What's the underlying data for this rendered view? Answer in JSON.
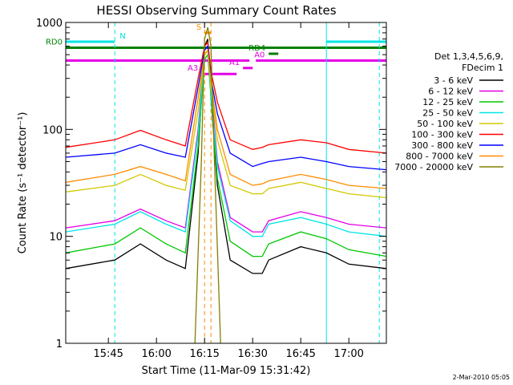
{
  "chart_data": {
    "type": "line",
    "title": "HESSI Observing Summary Count Rates",
    "xlabel": "Start Time (11-Mar-09 15:31:42)",
    "ylabel": "Count Rate (s⁻¹ detector⁻¹)",
    "y_scale": "log",
    "ylim": [
      1,
      1000
    ],
    "xlim": [
      "15:31:42",
      "17:11:42"
    ],
    "x_ticks": [
      "15:45",
      "16:00",
      "16:15",
      "16:30",
      "16:45",
      "17:00"
    ],
    "y_ticks": [
      "1",
      "10",
      "100",
      "1000"
    ],
    "grid": false,
    "legend_position": "right",
    "legend_header": [
      "Det 1,3,4,5,6,9,",
      "FDecim 1"
    ],
    "footer_date": "2-Mar-2010 05:05",
    "flags": [
      {
        "label": "N",
        "color": "#00e5e5",
        "y": 660,
        "segments": [
          [
            "15:31:42",
            "15:47:00"
          ],
          [
            "16:53:00",
            "17:11:42"
          ]
        ]
      },
      {
        "label": "S",
        "color": "#ff8c00",
        "y": 800,
        "segments": [
          [
            "16:15:00",
            "16:17:00"
          ]
        ]
      },
      {
        "label": "RD0",
        "color": "#008000",
        "y": 580,
        "segments": [
          [
            "15:31:42",
            "17:11:42"
          ]
        ]
      },
      {
        "label": "RD4",
        "color": "#008000",
        "y": 510,
        "segments": [
          [
            "16:35:00",
            "16:38:00"
          ]
        ]
      },
      {
        "label": "A0",
        "color": "#e600e6",
        "y": 440,
        "segments": [
          [
            "15:31:42",
            "16:29:00"
          ],
          [
            "16:31:00",
            "17:11:42"
          ]
        ]
      },
      {
        "label": "A1",
        "color": "#e600e6",
        "y": 375,
        "segments": [
          [
            "16:27:00",
            "16:30:00"
          ]
        ]
      },
      {
        "label": "A3",
        "color": "#e600e6",
        "y": 330,
        "segments": [
          [
            "16:14:00",
            "16:25:00"
          ]
        ]
      }
    ],
    "markers": [
      {
        "type": "dashed",
        "color": "#00e5e5",
        "x": "15:47:00"
      },
      {
        "type": "solid",
        "color": "#00e5e5",
        "x": "16:53:00"
      },
      {
        "type": "dashed",
        "color": "#00e5e5",
        "x": "17:09:30"
      },
      {
        "type": "dashed",
        "color": "#ff8c00",
        "x": "16:15:00"
      },
      {
        "type": "dashed",
        "color": "#ff8c00",
        "x": "16:17:00"
      }
    ],
    "series": [
      {
        "name": "3 - 6 keV",
        "color": "#000000",
        "points": [
          [
            "15:31:42",
            5
          ],
          [
            "15:47:00",
            6
          ],
          [
            "15:55:00",
            8.5
          ],
          [
            "16:03:00",
            6
          ],
          [
            "16:09:00",
            5
          ],
          [
            "16:13:00",
            60
          ],
          [
            "16:15:00",
            600
          ],
          [
            "16:16:00",
            700
          ],
          [
            "16:17:00",
            200
          ],
          [
            "16:19:00",
            30
          ],
          [
            "16:23:00",
            6
          ],
          [
            "16:30:00",
            4.5
          ],
          [
            "16:33:00",
            4.5
          ],
          [
            "16:35:00",
            6
          ],
          [
            "16:45:00",
            8
          ],
          [
            "16:53:00",
            7
          ],
          [
            "17:00:00",
            5.5
          ],
          [
            "17:11:42",
            5
          ]
        ]
      },
      {
        "name": "6 - 12 keV",
        "color": "#e600e6",
        "points": [
          [
            "15:31:42",
            12
          ],
          [
            "15:47:00",
            14
          ],
          [
            "15:55:00",
            18
          ],
          [
            "16:03:00",
            14
          ],
          [
            "16:09:00",
            12
          ],
          [
            "16:13:00",
            100
          ],
          [
            "16:15:00",
            550
          ],
          [
            "16:16:00",
            600
          ],
          [
            "16:17:00",
            250
          ],
          [
            "16:19:00",
            50
          ],
          [
            "16:23:00",
            15
          ],
          [
            "16:30:00",
            11
          ],
          [
            "16:33:00",
            11
          ],
          [
            "16:35:00",
            14
          ],
          [
            "16:45:00",
            17
          ],
          [
            "16:53:00",
            15
          ],
          [
            "17:00:00",
            13
          ],
          [
            "17:11:42",
            12
          ]
        ]
      },
      {
        "name": "12 - 25 keV",
        "color": "#00c800",
        "points": [
          [
            "15:31:42",
            7
          ],
          [
            "15:47:00",
            8.5
          ],
          [
            "15:55:00",
            12
          ],
          [
            "16:03:00",
            8.5
          ],
          [
            "16:09:00",
            7
          ],
          [
            "16:13:00",
            70
          ],
          [
            "16:15:00",
            450
          ],
          [
            "16:16:00",
            500
          ],
          [
            "16:17:00",
            200
          ],
          [
            "16:19:00",
            35
          ],
          [
            "16:23:00",
            9
          ],
          [
            "16:30:00",
            6.5
          ],
          [
            "16:33:00",
            6.5
          ],
          [
            "16:35:00",
            8.5
          ],
          [
            "16:45:00",
            11
          ],
          [
            "16:53:00",
            9.5
          ],
          [
            "17:00:00",
            7.5
          ],
          [
            "17:11:42",
            6.5
          ]
        ]
      },
      {
        "name": "25 - 50 keV",
        "color": "#00e5e5",
        "points": [
          [
            "15:31:42",
            11
          ],
          [
            "15:47:00",
            13
          ],
          [
            "15:55:00",
            17
          ],
          [
            "16:03:00",
            13
          ],
          [
            "16:09:00",
            11
          ],
          [
            "16:13:00",
            90
          ],
          [
            "16:15:00",
            500
          ],
          [
            "16:16:00",
            550
          ],
          [
            "16:17:00",
            220
          ],
          [
            "16:19:00",
            45
          ],
          [
            "16:23:00",
            14
          ],
          [
            "16:30:00",
            10
          ],
          [
            "16:33:00",
            10
          ],
          [
            "16:35:00",
            13
          ],
          [
            "16:45:00",
            15
          ],
          [
            "16:53:00",
            13
          ],
          [
            "17:00:00",
            11
          ],
          [
            "17:11:42",
            10
          ]
        ]
      },
      {
        "name": "50 - 100 keV",
        "color": "#d2c800",
        "points": [
          [
            "15:31:42",
            26
          ],
          [
            "15:47:00",
            30
          ],
          [
            "15:55:00",
            38
          ],
          [
            "16:03:00",
            30
          ],
          [
            "16:09:00",
            27
          ],
          [
            "16:13:00",
            150
          ],
          [
            "16:15:00",
            500
          ],
          [
            "16:16:00",
            550
          ],
          [
            "16:17:00",
            250
          ],
          [
            "16:19:00",
            80
          ],
          [
            "16:23:00",
            30
          ],
          [
            "16:30:00",
            25
          ],
          [
            "16:33:00",
            25
          ],
          [
            "16:35:00",
            28
          ],
          [
            "16:45:00",
            32
          ],
          [
            "16:53:00",
            28
          ],
          [
            "17:00:00",
            25
          ],
          [
            "17:11:42",
            23
          ]
        ]
      },
      {
        "name": "100 - 300 keV",
        "color": "#ff0000",
        "points": [
          [
            "15:31:42",
            68
          ],
          [
            "15:47:00",
            80
          ],
          [
            "15:55:00",
            98
          ],
          [
            "16:03:00",
            80
          ],
          [
            "16:09:00",
            70
          ],
          [
            "16:13:00",
            300
          ],
          [
            "16:15:00",
            600
          ],
          [
            "16:16:00",
            650
          ],
          [
            "16:17:00",
            350
          ],
          [
            "16:19:00",
            180
          ],
          [
            "16:23:00",
            80
          ],
          [
            "16:30:00",
            65
          ],
          [
            "16:33:00",
            68
          ],
          [
            "16:35:00",
            72
          ],
          [
            "16:45:00",
            80
          ],
          [
            "16:53:00",
            75
          ],
          [
            "17:00:00",
            65
          ],
          [
            "17:11:42",
            60
          ]
        ]
      },
      {
        "name": "300 - 800 keV",
        "color": "#0000ff",
        "points": [
          [
            "15:31:42",
            55
          ],
          [
            "15:47:00",
            60
          ],
          [
            "15:55:00",
            72
          ],
          [
            "16:03:00",
            60
          ],
          [
            "16:09:00",
            55
          ],
          [
            "16:13:00",
            250
          ],
          [
            "16:15:00",
            550
          ],
          [
            "16:16:00",
            600
          ],
          [
            "16:17:00",
            300
          ],
          [
            "16:19:00",
            140
          ],
          [
            "16:23:00",
            60
          ],
          [
            "16:30:00",
            45
          ],
          [
            "16:33:00",
            48
          ],
          [
            "16:35:00",
            50
          ],
          [
            "16:45:00",
            55
          ],
          [
            "16:53:00",
            50
          ],
          [
            "17:00:00",
            45
          ],
          [
            "17:11:42",
            42
          ]
        ]
      },
      {
        "name": "800 - 7000 keV",
        "color": "#ff8c00",
        "points": [
          [
            "15:31:42",
            32
          ],
          [
            "15:47:00",
            38
          ],
          [
            "15:55:00",
            45
          ],
          [
            "16:03:00",
            38
          ],
          [
            "16:09:00",
            33
          ],
          [
            "16:13:00",
            200
          ],
          [
            "16:15:00",
            500
          ],
          [
            "16:16:00",
            550
          ],
          [
            "16:17:00",
            280
          ],
          [
            "16:19:00",
            100
          ],
          [
            "16:23:00",
            38
          ],
          [
            "16:30:00",
            30
          ],
          [
            "16:33:00",
            31
          ],
          [
            "16:35:00",
            33
          ],
          [
            "16:45:00",
            38
          ],
          [
            "16:53:00",
            34
          ],
          [
            "17:00:00",
            30
          ],
          [
            "17:11:42",
            28
          ]
        ]
      },
      {
        "name": "7000 - 20000 keV",
        "color": "#808000",
        "points": [
          [
            "16:12:00",
            1
          ],
          [
            "16:14:00",
            50
          ],
          [
            "16:15:00",
            700
          ],
          [
            "16:16:00",
            900
          ],
          [
            "16:17:00",
            600
          ],
          [
            "16:18:00",
            60
          ],
          [
            "16:20:00",
            1
          ]
        ]
      }
    ]
  }
}
